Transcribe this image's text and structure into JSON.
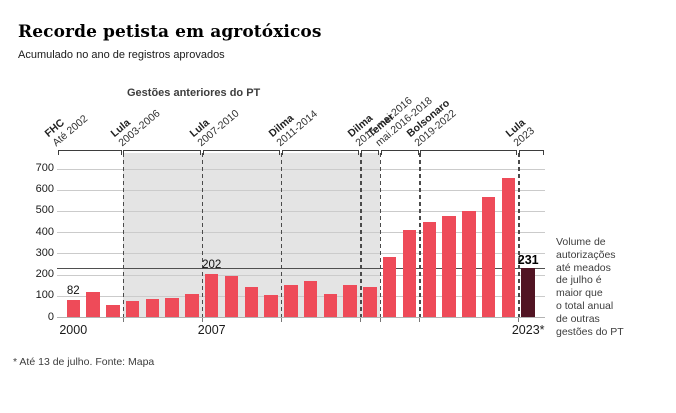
{
  "header": {
    "title": "Recorde petista em agrotóxicos",
    "subtitle": "Acumulado no ano de registros aprovados"
  },
  "chart_data": {
    "type": "bar",
    "title": "Recorde petista em agrotóxicos",
    "subtitle": "Acumulado no ano de registros aprovados",
    "x": [
      2000,
      2001,
      2002,
      2003,
      2004,
      2005,
      2006,
      2007,
      2008,
      2009,
      2010,
      2011,
      2012,
      2013,
      2014,
      2015,
      2016,
      2017,
      2018,
      2019,
      2020,
      2021,
      2022,
      2023
    ],
    "values": [
      82,
      116,
      55,
      75,
      85,
      90,
      110,
      202,
      192,
      140,
      102,
      150,
      172,
      110,
      150,
      142,
      285,
      410,
      450,
      475,
      500,
      568,
      655,
      231
    ],
    "ylim": [
      0,
      700
    ],
    "yticks": [
      0,
      100,
      200,
      300,
      400,
      500,
      600,
      700
    ],
    "xtick_labels": [
      {
        "year": 2000,
        "label": "2000"
      },
      {
        "year": 2007,
        "label": "2007"
      },
      {
        "year": 2023,
        "label": "2023*"
      }
    ],
    "labeled_points": [
      {
        "year": 2000,
        "label": "82",
        "bold": false
      },
      {
        "year": 2007,
        "label": "202",
        "bold": false
      },
      {
        "year": 2023,
        "label": "231",
        "bold": true
      }
    ],
    "reference_line": {
      "value": 231
    },
    "bar_color": "#ee4b59",
    "highlight_year": 2023,
    "highlight_color": "#511423",
    "pt_band_label": "Gestões anteriores do PT",
    "pt_band_color": "#e4e4e4",
    "grid": true,
    "legend_position": "none",
    "segments": [
      {
        "name": "FHC",
        "dates": "Até 2002",
        "start_year": 2000,
        "pt": false,
        "dash": false
      },
      {
        "name": "Lula",
        "dates": "2003-2006",
        "start_year": 2003,
        "pt": true,
        "dash": true
      },
      {
        "name": "Lula",
        "dates": "2007-2010",
        "start_year": 2007,
        "pt": true,
        "dash": true
      },
      {
        "name": "Dilma",
        "dates": "2011-2014",
        "start_year": 2011,
        "pt": true,
        "dash": true
      },
      {
        "name": "Dilma",
        "dates": "2015-mai.2016",
        "start_year": 2015,
        "pt": true,
        "dash": true
      },
      {
        "name": "Temer",
        "dates": "mai.2016-2018",
        "start_year": 2016,
        "pt": false,
        "dash": true
      },
      {
        "name": "Bolsonaro",
        "dates": "2019-2022",
        "start_year": 2018,
        "pt": false,
        "dash": true
      },
      {
        "name": "Lula",
        "dates": "2023",
        "start_year": 2023,
        "pt": false,
        "dash": true
      }
    ],
    "annotation": [
      "Volume de",
      "autorizações",
      "até meados",
      "de julho é",
      "maior que",
      "o total anual",
      "de outras",
      "gestões do PT"
    ]
  },
  "footer": {
    "note": "* Até 13 de julho. Fonte: Mapa"
  }
}
